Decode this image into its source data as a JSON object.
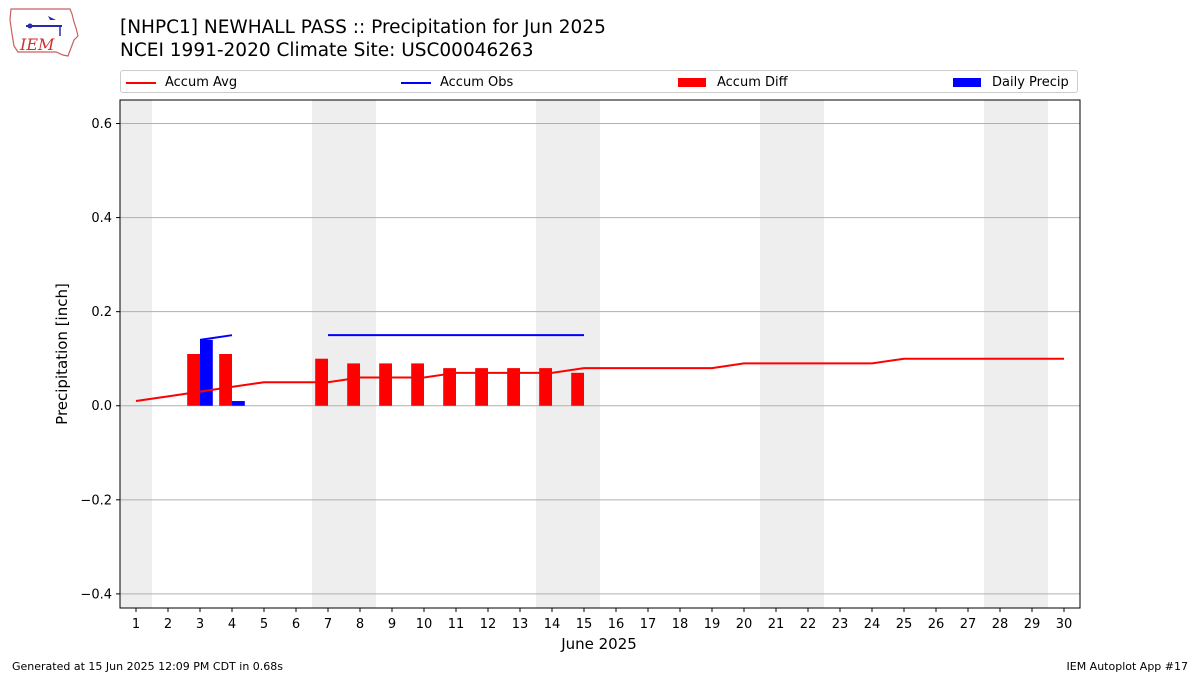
{
  "logo": {
    "text": "IEM",
    "icon": "iowa-state-outline-logo"
  },
  "header": {
    "title_line1": "[NHPC1] NEWHALL PASS :: Precipitation for Jun 2025",
    "title_line2": "NCEI 1991-2020 Climate Site: USC00046263"
  },
  "legend": {
    "items": [
      {
        "label": "Accum Avg",
        "color": "#ff0000",
        "kind": "line"
      },
      {
        "label": "Accum Obs",
        "color": "#0000ff",
        "kind": "line"
      },
      {
        "label": "Accum Diff",
        "color": "#ff0000",
        "kind": "box"
      },
      {
        "label": "Daily Precip",
        "color": "#0000ff",
        "kind": "box"
      }
    ]
  },
  "chart_data": {
    "type": "bar",
    "title": "[NHPC1] NEWHALL PASS :: Precipitation for Jun 2025",
    "subtitle": "NCEI 1991-2020 Climate Site: USC00046263",
    "xlabel": "June 2025",
    "ylabel": "Precipitation [inch]",
    "xlim": [
      0.5,
      30.5
    ],
    "ylim": [
      -0.43,
      0.65
    ],
    "x_ticks": [
      1,
      2,
      3,
      4,
      5,
      6,
      7,
      8,
      9,
      10,
      11,
      12,
      13,
      14,
      15,
      16,
      17,
      18,
      19,
      20,
      21,
      22,
      23,
      24,
      25,
      26,
      27,
      28,
      29,
      30
    ],
    "y_ticks": [
      -0.4,
      -0.2,
      0.0,
      0.2,
      0.4,
      0.6
    ],
    "y_tick_labels": [
      "−0.4",
      "−0.2",
      "0.0",
      "0.2",
      "0.4",
      "0.6"
    ],
    "grid": "horizontal",
    "weekend_shading": [
      [
        0.5,
        1.5
      ],
      [
        6.5,
        8.5
      ],
      [
        13.5,
        15.5
      ],
      [
        20.5,
        22.5
      ],
      [
        27.5,
        29.5
      ]
    ],
    "series": [
      {
        "name": "Accum Avg",
        "type": "line",
        "color": "#ff0000",
        "x": [
          1,
          2,
          3,
          4,
          5,
          6,
          7,
          8,
          9,
          10,
          11,
          12,
          13,
          14,
          15,
          16,
          17,
          18,
          19,
          20,
          21,
          22,
          23,
          24,
          25,
          26,
          27,
          28,
          29,
          30
        ],
        "values": [
          0.01,
          0.02,
          0.03,
          0.04,
          0.05,
          0.05,
          0.05,
          0.06,
          0.06,
          0.06,
          0.07,
          0.07,
          0.07,
          0.07,
          0.08,
          0.08,
          0.08,
          0.08,
          0.08,
          0.09,
          0.09,
          0.09,
          0.09,
          0.09,
          0.1,
          0.1,
          0.1,
          0.1,
          0.1,
          0.1
        ]
      },
      {
        "name": "Accum Obs",
        "type": "line",
        "color": "#0000ff",
        "segments": [
          {
            "x": [
              3,
              4
            ],
            "values": [
              0.14,
              0.15
            ]
          },
          {
            "x": [
              7,
              8,
              9,
              10,
              11,
              12,
              13,
              14,
              15
            ],
            "values": [
              0.15,
              0.15,
              0.15,
              0.15,
              0.15,
              0.15,
              0.15,
              0.15,
              0.15
            ]
          }
        ]
      },
      {
        "name": "Accum Diff",
        "type": "bar",
        "color": "#ff0000",
        "x": [
          3,
          4,
          7,
          8,
          9,
          10,
          11,
          12,
          13,
          14,
          15
        ],
        "values": [
          0.11,
          0.11,
          0.1,
          0.09,
          0.09,
          0.09,
          0.08,
          0.08,
          0.08,
          0.08,
          0.07
        ]
      },
      {
        "name": "Daily Precip",
        "type": "bar",
        "color": "#0000ff",
        "x": [
          3,
          4
        ],
        "values": [
          0.14,
          0.01
        ]
      }
    ]
  },
  "footer": {
    "left": "Generated at 15 Jun 2025 12:09 PM CDT in 0.68s",
    "right": "IEM Autoplot App #17"
  }
}
